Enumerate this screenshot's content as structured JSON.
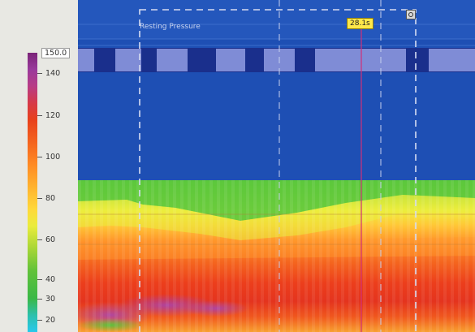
{
  "color_scale": {
    "max_value": "150.0",
    "ticks": [
      "140",
      "120",
      "100",
      "80",
      "60",
      "40",
      "30",
      "20"
    ],
    "tick_values": [
      140,
      120,
      100,
      80,
      60,
      40,
      30,
      20
    ],
    "unit": ""
  },
  "region_label": "Resting Pressure",
  "time_marker": "28.1s",
  "colors": {
    "upper_band": "#1e4fb4",
    "panel_bg": "#e8e8e3",
    "marker_line": "#d0307a",
    "badge": "#ffe84a"
  },
  "icons": {
    "window_control": "close-icon"
  }
}
